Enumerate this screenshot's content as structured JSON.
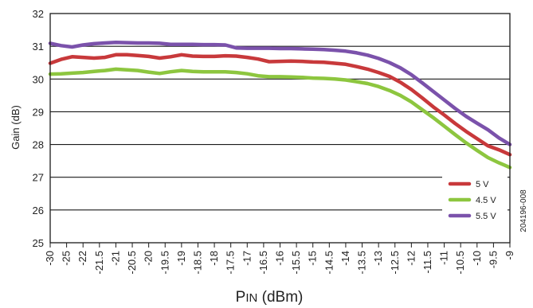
{
  "figure_id": "204196-008",
  "chart_data": {
    "type": "line",
    "ylabel": "Gain (dB)",
    "xlabel": {
      "main": "P",
      "sub": "IN",
      "rest": " (dBm)"
    },
    "ylim": [
      25,
      32
    ],
    "yticks": [
      25,
      26,
      27,
      28,
      29,
      30,
      31,
      32
    ],
    "grid": true,
    "legend_position": "bottom-right",
    "x": [
      -30,
      -29.5,
      -29,
      -28.5,
      -28,
      -27.5,
      -27,
      -26.5,
      -26,
      -25.5,
      -25,
      -24.5,
      -24,
      -23.5,
      -23,
      -22.5,
      -22,
      -21.5,
      -21,
      -20.5,
      -20,
      -19.5,
      -19,
      -18.5,
      -18,
      -17.5,
      -17,
      -16.5,
      -16,
      -15.5,
      -15,
      -14.5,
      -14,
      -13.5,
      -13,
      -12.5,
      -12,
      -11.5,
      -11,
      -10.5,
      -10,
      -9.5,
      -9
    ],
    "x_tick_labels": [
      "-30",
      "-25",
      "-22",
      "-21.5",
      "-21",
      "-20.5",
      "-20",
      "-19.5",
      "-19",
      "-18.5",
      "-18",
      "-17.5",
      "-17",
      "-16.5",
      "-16",
      "-15.5",
      "-15",
      "-14.5",
      "-14",
      "-13.5",
      "-13",
      "-12.5",
      "-12",
      "-11.5",
      "-11",
      "-10.5",
      "-10",
      "-9.5",
      "-9"
    ],
    "series": [
      {
        "name": "5 V",
        "color": "#c8393b",
        "values": [
          30.48,
          30.6,
          30.68,
          30.66,
          30.64,
          30.66,
          30.74,
          30.74,
          30.72,
          30.69,
          30.64,
          30.68,
          30.74,
          30.7,
          30.69,
          30.69,
          30.71,
          30.7,
          30.66,
          30.61,
          30.53,
          30.54,
          30.55,
          30.54,
          30.52,
          30.51,
          30.48,
          30.45,
          30.38,
          30.3,
          30.2,
          30.08,
          29.9,
          29.68,
          29.42,
          29.15,
          28.9,
          28.64,
          28.4,
          28.18,
          27.96,
          27.84,
          27.69
        ]
      },
      {
        "name": "4.5 V",
        "color": "#8dc63f",
        "values": [
          30.15,
          30.16,
          30.18,
          30.2,
          30.23,
          30.26,
          30.3,
          30.28,
          30.26,
          30.21,
          30.17,
          30.22,
          30.26,
          30.23,
          30.22,
          30.22,
          30.22,
          30.2,
          30.16,
          30.1,
          30.07,
          30.07,
          30.06,
          30.05,
          30.03,
          30.02,
          30.0,
          29.97,
          29.92,
          29.86,
          29.77,
          29.65,
          29.5,
          29.3,
          29.06,
          28.82,
          28.56,
          28.3,
          28.05,
          27.82,
          27.6,
          27.44,
          27.3
        ]
      },
      {
        "name": "5.5 V",
        "color": "#7b52ab",
        "values": [
          31.09,
          31.02,
          30.98,
          31.04,
          31.08,
          31.1,
          31.12,
          31.11,
          31.1,
          31.1,
          31.09,
          31.06,
          31.06,
          31.06,
          31.05,
          31.05,
          31.04,
          30.95,
          30.94,
          30.94,
          30.94,
          30.93,
          30.93,
          30.92,
          30.91,
          30.9,
          30.88,
          30.85,
          30.8,
          30.73,
          30.63,
          30.5,
          30.34,
          30.13,
          29.88,
          29.62,
          29.36,
          29.1,
          28.86,
          28.65,
          28.45,
          28.2,
          28.0
        ]
      }
    ]
  }
}
